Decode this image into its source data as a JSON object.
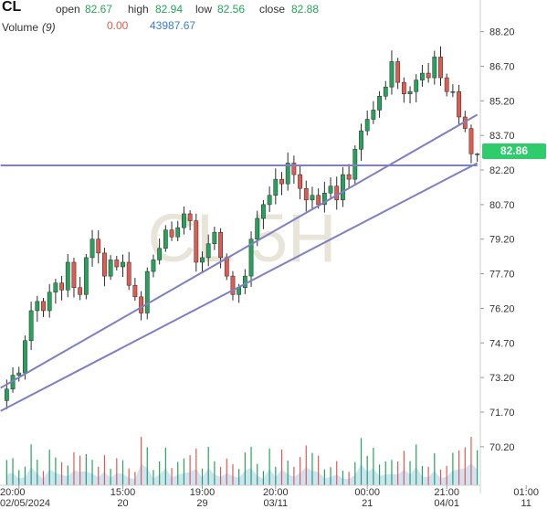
{
  "header": {
    "symbol": "CL",
    "open_label": "open",
    "open_value": "82.67",
    "high_label": "high",
    "high_value": "82.94",
    "low_label": "low",
    "low_value": "82.56",
    "close_label": "close",
    "close_value": "82.88",
    "volume_label": "Volume",
    "volume_period": "(9)",
    "volume_change": "0.00",
    "volume_value": "43987.67"
  },
  "watermark": "CL 5H",
  "last_price": "82.86",
  "colors": {
    "up": "#26a35b",
    "down": "#e05a4f",
    "trendline": "#7f7fc4",
    "volume_area": "#b9d7f0",
    "price_tag": "#2fcc6c"
  },
  "chart_data": {
    "type": "candlestick",
    "timeframe": "5H",
    "y_axis": {
      "ticks": [
        "88.20",
        "86.70",
        "85.20",
        "83.70",
        "82.20",
        "80.70",
        "79.20",
        "77.70",
        "76.20",
        "74.70",
        "73.20",
        "71.70",
        "70.20"
      ],
      "range": [
        69.6,
        88.7
      ]
    },
    "x_axis": {
      "ticks": [
        {
          "time": "20:00",
          "date": "02/05/2024",
          "index": 2
        },
        {
          "time": "15:00",
          "date": "20",
          "index": 19
        },
        {
          "time": "19:00",
          "date": "29",
          "index": 32
        },
        {
          "time": "20:00",
          "date": "03/11",
          "index": 44
        },
        {
          "time": "00:00",
          "date": "21",
          "index": 59
        },
        {
          "time": "21:00",
          "date": "04/01",
          "index": 72
        },
        {
          "time": "01:00",
          "date": "11",
          "index": 85
        }
      ]
    },
    "close": [
      72.7,
      73.3,
      73.4,
      74.8,
      76.1,
      76.5,
      76.1,
      76.9,
      77.3,
      77.0,
      78.2,
      77.1,
      76.8,
      78.4,
      79.2,
      78.6,
      77.6,
      78.3,
      78.0,
      78.2,
      77.2,
      76.7,
      76.0,
      77.8,
      78.3,
      78.8,
      79.6,
      79.3,
      79.7,
      80.3,
      80.0,
      78.2,
      78.4,
      79.0,
      79.5,
      78.4,
      77.6,
      76.8,
      77.1,
      77.6,
      79.2,
      80.1,
      80.7,
      81.1,
      81.8,
      81.6,
      82.5,
      82.0,
      81.4,
      80.9,
      81.1,
      80.7,
      81.2,
      81.5,
      80.9,
      82.0,
      81.8,
      83.1,
      83.9,
      84.4,
      84.8,
      85.4,
      85.8,
      86.9,
      86.0,
      85.5,
      85.6,
      86.1,
      86.4,
      86.2,
      87.1,
      86.2,
      85.6,
      85.6,
      84.5,
      84.0,
      82.9,
      82.9
    ],
    "open_first": 72.2,
    "last": {
      "open": 82.67,
      "high": 82.94,
      "low": 82.56,
      "close": 82.88
    },
    "volume_last": 43987.67,
    "trendlines": [
      {
        "from": {
          "index": -1,
          "price": 82.4
        },
        "to": {
          "index": 77,
          "price": 82.4
        }
      },
      {
        "from": {
          "index": -1,
          "price": 72.75
        },
        "to": {
          "index": 77,
          "price": 84.6
        }
      },
      {
        "from": {
          "index": -1,
          "price": 71.75
        },
        "to": {
          "index": 77,
          "price": 82.5
        }
      }
    ]
  }
}
